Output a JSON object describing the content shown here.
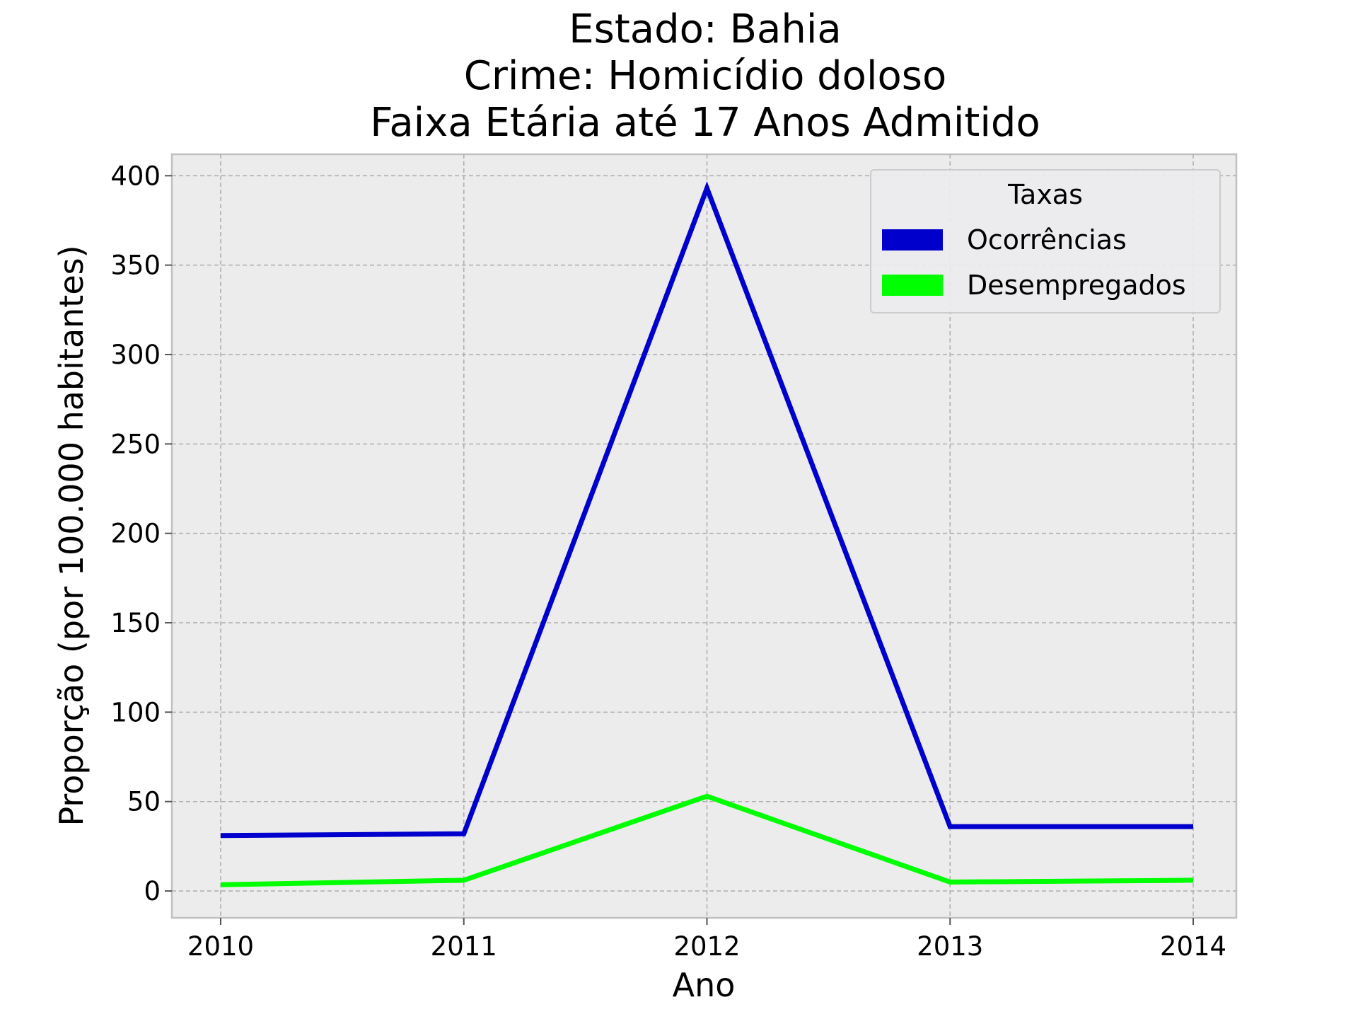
{
  "chart_data": {
    "type": "line",
    "title_lines": [
      "Estado: Bahia",
      "Crime: Homicídio doloso",
      "Faixa Etária até 17 Anos   Admitido"
    ],
    "xlabel": "Ano",
    "ylabel": "Proporção (por 100.000 habitantes)",
    "x": [
      2010,
      2011,
      2012,
      2013,
      2014
    ],
    "x_tick_labels": [
      "2010",
      "2011",
      "2012",
      "2013",
      "2014"
    ],
    "ylim": [
      -15,
      412
    ],
    "y_ticks": [
      0,
      50,
      100,
      150,
      200,
      250,
      300,
      350,
      400
    ],
    "y_tick_labels": [
      "0",
      "50",
      "100",
      "150",
      "200",
      "250",
      "300",
      "350",
      "400"
    ],
    "grid": true,
    "legend_title": "Taxas",
    "legend_position": "top-right",
    "series": [
      {
        "name": "Ocorrências",
        "color": "#0000cc",
        "values": [
          31,
          32,
          393,
          36,
          36
        ]
      },
      {
        "name": "Desempregados",
        "color": "#00ff00",
        "values": [
          3.5,
          6,
          53,
          5,
          6
        ]
      }
    ]
  }
}
